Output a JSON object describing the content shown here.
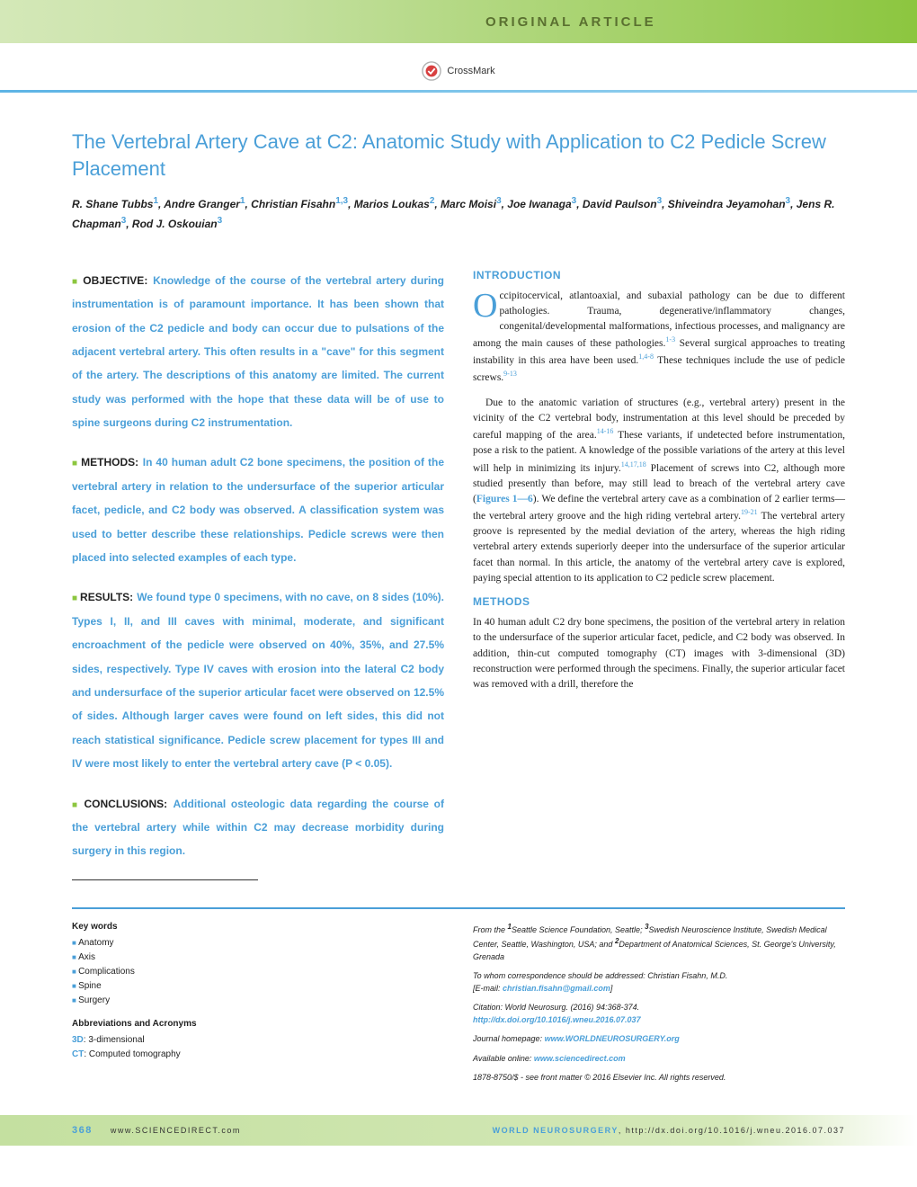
{
  "header": {
    "section_label": "Original Article",
    "crossmark_text": "CrossMark"
  },
  "article": {
    "title": "The Vertebral Artery Cave at C2: Anatomic Study with Application to C2 Pedicle Screw Placement",
    "authors_html": "R. Shane Tubbs<sup>1</sup>, Andre Granger<sup>1</sup>, Christian Fisahn<sup>1,3</sup>, Marios Loukas<sup>2</sup>, Marc Moisi<sup>3</sup>, Joe Iwanaga<sup>3</sup>, David Paulson<sup>3</sup>, Shiveindra Jeyamohan<sup>3</sup>, Jens R. Chapman<sup>3</sup>, Rod J. Oskouian<sup>3</sup>"
  },
  "abstract": {
    "objective": {
      "label": "OBJECTIVE:",
      "text": "Knowledge of the course of the vertebral artery during instrumentation is of paramount importance. It has been shown that erosion of the C2 pedicle and body can occur due to pulsations of the adjacent vertebral artery. This often results in a \"cave\" for this segment of the artery. The descriptions of this anatomy are limited. The current study was performed with the hope that these data will be of use to spine surgeons during C2 instrumentation."
    },
    "methods": {
      "label": "METHODS:",
      "text": "In 40 human adult C2 bone specimens, the position of the vertebral artery in relation to the undersurface of the superior articular facet, pedicle, and C2 body was observed. A classification system was used to better describe these relationships. Pedicle screws were then placed into selected examples of each type."
    },
    "results": {
      "label": "RESULTS:",
      "text": "We found type 0 specimens, with no cave, on 8 sides (10%). Types I, II, and III caves with minimal, moderate, and significant encroachment of the pedicle were observed on 40%, 35%, and 27.5% sides, respectively. Type IV caves with erosion into the lateral C2 body and undersurface of the superior articular facet were observed on 12.5% of sides. Although larger caves were found on left sides, this did not reach statistical significance. Pedicle screw placement for types III and IV were most likely to enter the vertebral artery cave (P < 0.05)."
    },
    "conclusions": {
      "label": "CONCLUSIONS:",
      "text": "Additional osteologic data regarding the course of the vertebral artery while within C2 may decrease morbidity during surgery in this region."
    }
  },
  "body": {
    "intro_heading": "INTRODUCTION",
    "intro_p1": "ccipitocervical, atlantoaxial, and subaxial pathology can be due to different pathologies. Trauma, degenerative/inflammatory changes, congenital/developmental malformations, infectious processes, and malignancy are among the main causes of these pathologies.<sup>1-3</sup> Several surgical approaches to treating instability in this area have been used.<sup>1,4-8</sup> These techniques include the use of pedicle screws.<sup>9-13</sup>",
    "intro_p2": "Due to the anatomic variation of structures (e.g., vertebral artery) present in the vicinity of the C2 vertebral body, instrumentation at this level should be preceded by careful mapping of the area.<sup>14-16</sup> These variants, if undetected before instrumentation, pose a risk to the patient. A knowledge of the possible variations of the artery at this level will help in minimizing its injury.<sup>14,17,18</sup> Placement of screws into C2, although more studied presently than before, may still lead to breach of the vertebral artery cave (<span class=\"figref\">Figures 1—6</span>). We define the vertebral artery cave as a combination of 2 earlier terms—the vertebral artery groove and the high riding vertebral artery.<sup>19-21</sup> The vertebral artery groove is represented by the medial deviation of the artery, whereas the high riding vertebral artery extends superiorly deeper into the undersurface of the superior articular facet than normal. In this article, the anatomy of the vertebral artery cave is explored, paying special attention to its application to C2 pedicle screw placement.",
    "methods_heading": "METHODS",
    "methods_p1": "In 40 human adult C2 dry bone specimens, the position of the vertebral artery in relation to the undersurface of the superior articular facet, pedicle, and C2 body was observed. In addition, thin-cut computed tomography (CT) images with 3-dimensional (3D) reconstruction were performed through the specimens. Finally, the superior articular facet was removed with a drill, therefore the"
  },
  "keywords": {
    "title": "Key words",
    "items": [
      "Anatomy",
      "Axis",
      "Complications",
      "Spine",
      "Surgery"
    ]
  },
  "abbreviations": {
    "title": "Abbreviations and Acronyms",
    "items": [
      {
        "key": "3D",
        "val": ": 3-dimensional"
      },
      {
        "key": "CT",
        "val": ": Computed tomography"
      }
    ]
  },
  "affiliations": {
    "from": "From the <sup>1</sup>Seattle Science Foundation, Seattle; <sup>3</sup>Swedish Neuroscience Institute, Swedish Medical Center, Seattle, Washington, USA; and <sup>2</sup>Department of Anatomical Sciences, St. George's University, Grenada",
    "correspondence": "To whom correspondence should be addressed: Christian Fisahn, M.D.",
    "email_label": "[E-mail: ",
    "email": "christian.fisahn@gmail.com",
    "email_close": "]",
    "citation": "Citation: World Neurosurg. (2016) 94:368-374.",
    "doi": "http://dx.doi.org/10.1016/j.wneu.2016.07.037",
    "homepage_label": "Journal homepage: ",
    "homepage": "www.WORLDNEUROSURGERY.org",
    "available_label": "Available online: ",
    "available": "www.sciencedirect.com",
    "copyright": "1878-8750/$ - see front matter © 2016 Elsevier Inc. All rights reserved."
  },
  "footer": {
    "page_num": "368",
    "sciencedirect": "www.SCIENCEDIRECT.com",
    "journal": "WORLD NEUROSURGERY",
    "doi_url": "http://dx.doi.org/10.1016/j.wneu.2016.07.037"
  },
  "colors": {
    "blue": "#4a9fd8",
    "green": "#8cc63f"
  }
}
